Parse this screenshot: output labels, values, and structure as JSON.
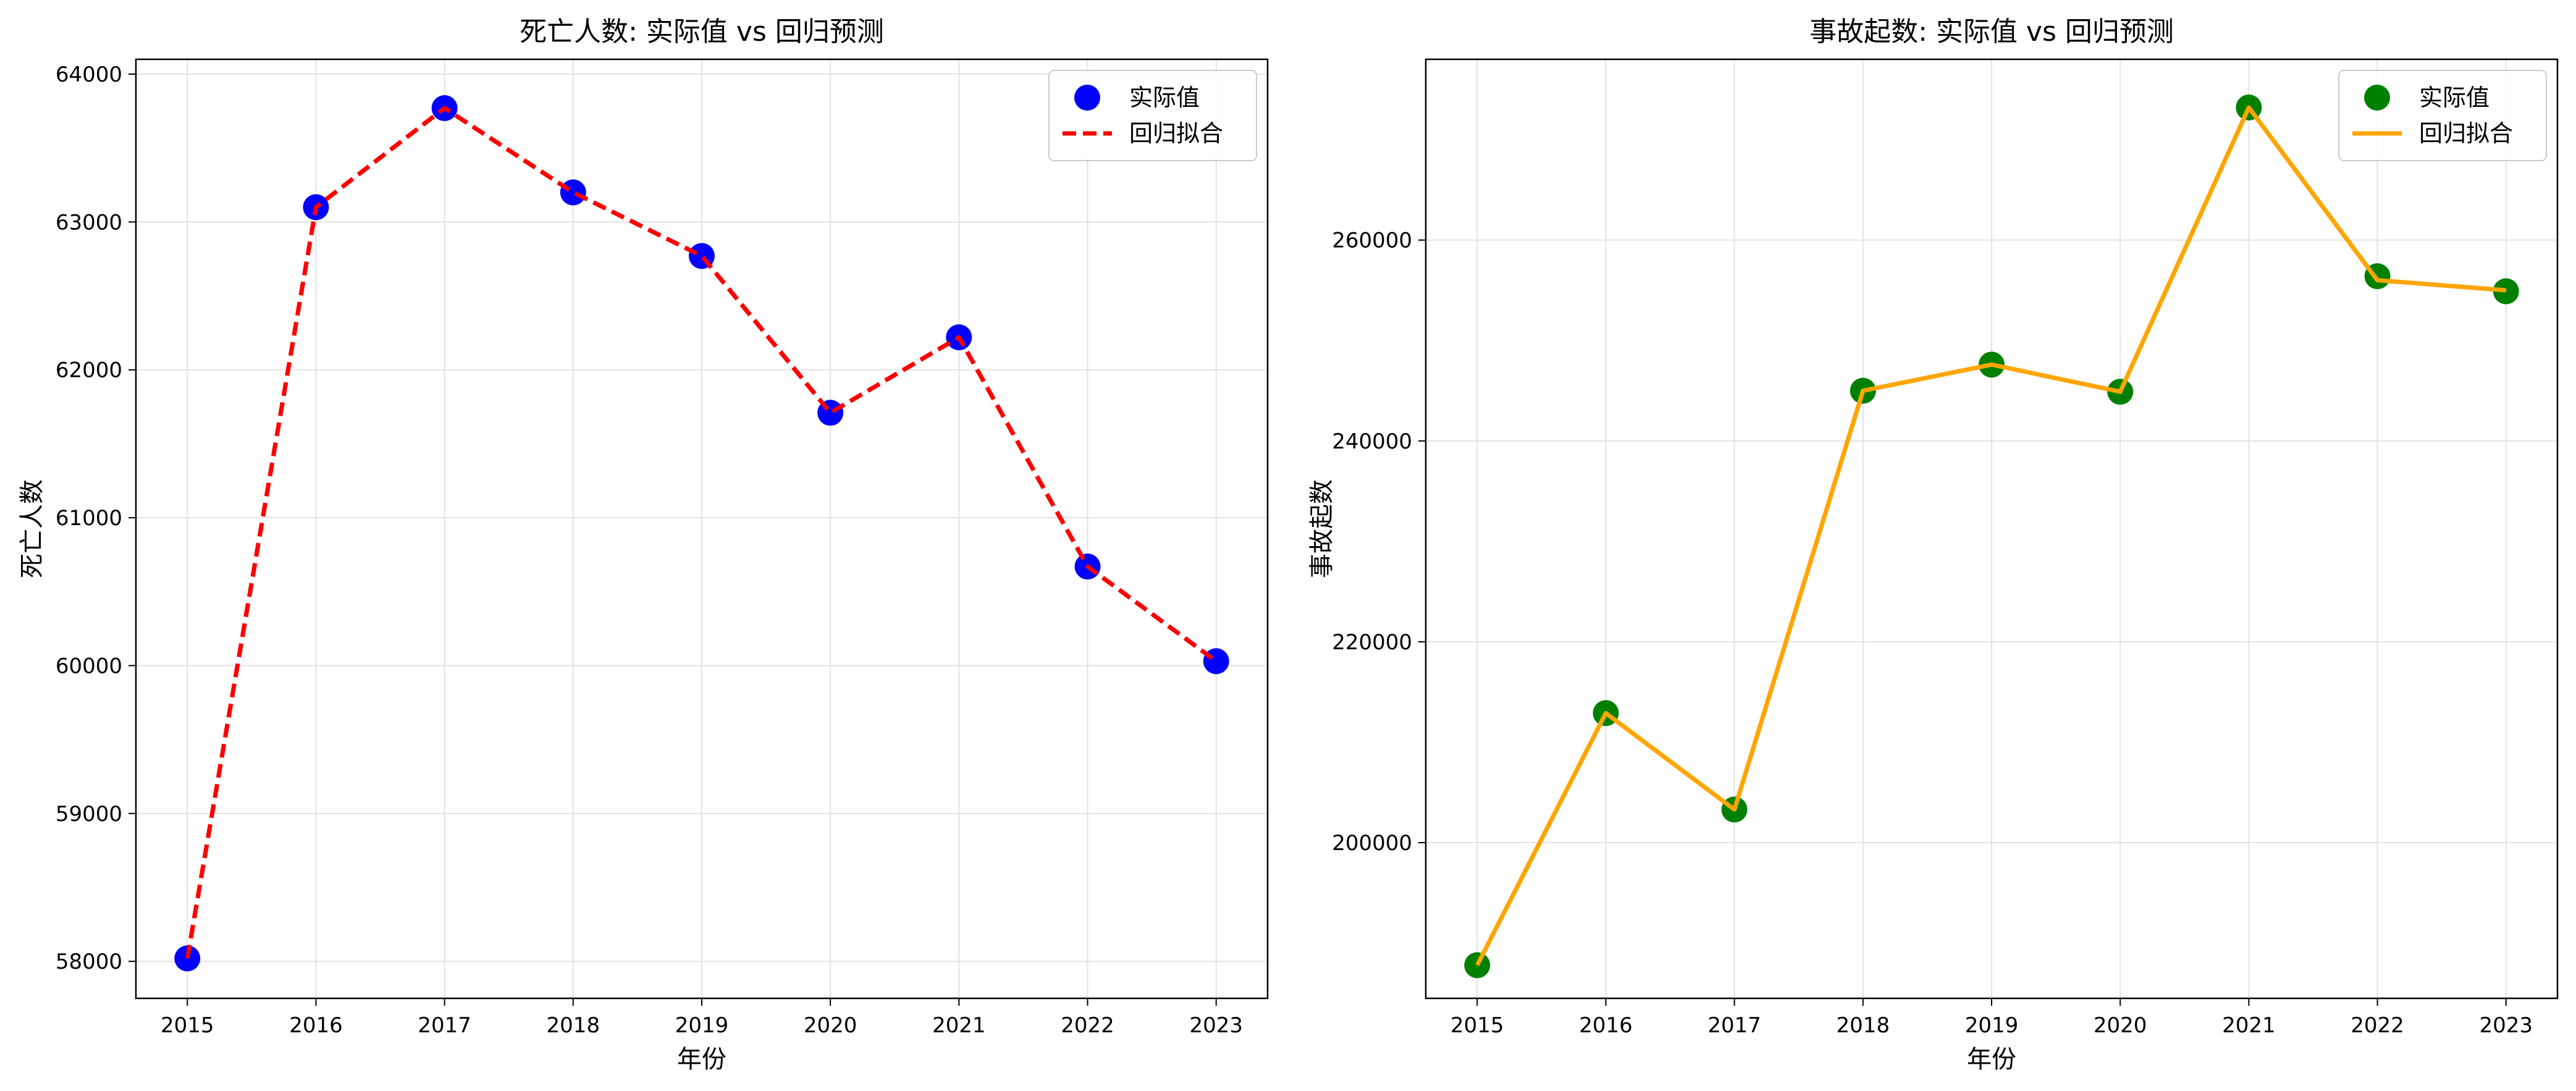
{
  "chart_data": [
    {
      "type": "scatter",
      "title": "死亡人数: 实际值 vs 回归预测",
      "xlabel": "年份",
      "ylabel": "死亡人数",
      "x": [
        2015,
        2016,
        2017,
        2018,
        2019,
        2020,
        2021,
        2022,
        2023
      ],
      "xlim": [
        2014.6,
        2023.4
      ],
      "ylim": [
        57750,
        64100
      ],
      "yticks": [
        58000,
        59000,
        60000,
        61000,
        62000,
        63000,
        64000
      ],
      "grid": true,
      "legend_position": "top-right",
      "series": [
        {
          "name": "实际值",
          "kind": "scatter",
          "color": "#0000ff",
          "values": [
            58020,
            63100,
            63770,
            63200,
            62770,
            61710,
            62220,
            60670,
            60030
          ]
        },
        {
          "name": "回归拟合",
          "kind": "line",
          "line_style": "dashed",
          "color": "#ff0000",
          "values": [
            58020,
            63100,
            63770,
            63200,
            62770,
            61710,
            62220,
            60670,
            60030
          ]
        }
      ]
    },
    {
      "type": "scatter",
      "title": "事故起数: 实际值 vs 回归预测",
      "xlabel": "年份",
      "ylabel": "事故起数",
      "x": [
        2015,
        2016,
        2017,
        2018,
        2019,
        2020,
        2021,
        2022,
        2023
      ],
      "xlim": [
        2014.6,
        2023.4
      ],
      "ylim": [
        184500,
        278000
      ],
      "yticks": [
        200000,
        220000,
        240000,
        260000
      ],
      "grid": true,
      "legend_position": "top-right",
      "series": [
        {
          "name": "实际值",
          "kind": "scatter",
          "color": "#008000",
          "values": [
            187800,
            212900,
            203300,
            245000,
            247600,
            244900,
            273200,
            256400,
            254900
          ]
        },
        {
          "name": "回归拟合",
          "kind": "line",
          "line_style": "solid",
          "color": "#ffa500",
          "values": [
            187800,
            212900,
            203300,
            245000,
            247600,
            244900,
            273200,
            256000,
            255000
          ]
        }
      ]
    }
  ]
}
